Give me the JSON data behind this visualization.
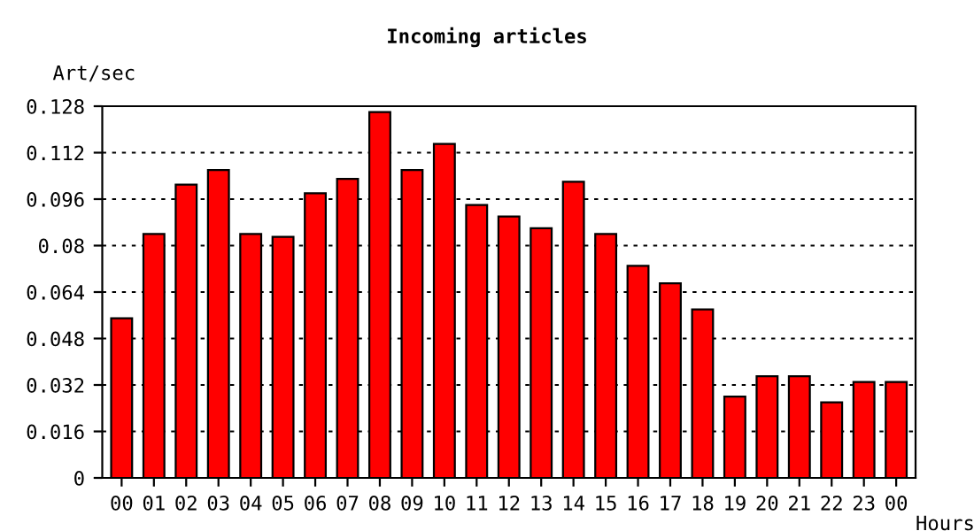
{
  "chart_data": {
    "type": "bar",
    "title": "Incoming articles",
    "xlabel": "Hours",
    "ylabel": "Art/sec",
    "categories": [
      "00",
      "01",
      "02",
      "03",
      "04",
      "05",
      "06",
      "07",
      "08",
      "09",
      "10",
      "11",
      "12",
      "13",
      "14",
      "15",
      "16",
      "17",
      "18",
      "19",
      "20",
      "21",
      "22",
      "23",
      "00"
    ],
    "values": [
      0.055,
      0.084,
      0.101,
      0.106,
      0.084,
      0.083,
      0.098,
      0.103,
      0.126,
      0.106,
      0.115,
      0.094,
      0.09,
      0.086,
      0.102,
      0.084,
      0.073,
      0.067,
      0.058,
      0.028,
      0.035,
      0.035,
      0.026,
      0.033,
      0.033
    ],
    "color": "#ff0000",
    "ylim": [
      0,
      0.128
    ],
    "yticks": [
      0,
      0.016,
      0.032,
      0.048,
      0.064,
      0.08,
      0.096,
      0.112,
      0.128
    ],
    "grid": "y"
  }
}
